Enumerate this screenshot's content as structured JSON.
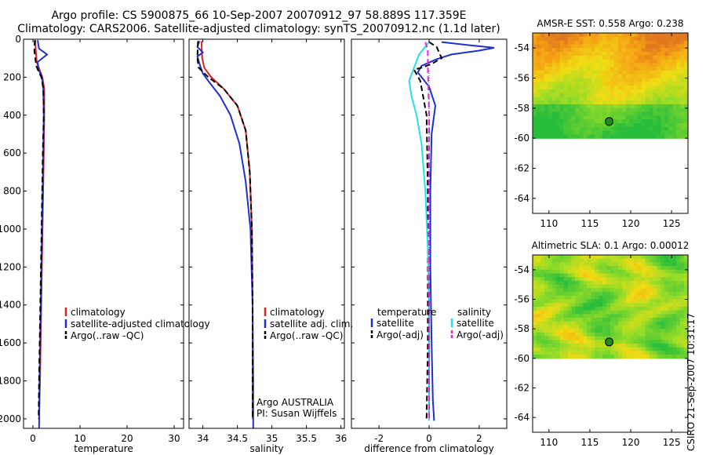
{
  "title_line1": "Argo profile: CS 5900875_66 10-Sep-2007 20070912_97 58.889S 117.359E",
  "title_line2": "Climatology: CARS2006. Satellite-adjusted climatology: synTS_20070912.nc (1.1d later)",
  "stamp": "CSIRO 21-Sep-2007 10:31:17",
  "colors": {
    "red": "#dd2222",
    "blue": "#1f2fd8",
    "black": "#000000",
    "cyan": "#22e0ee",
    "magenta": "#ee22dd",
    "marker": "#228822"
  },
  "chart_data": [
    {
      "type": "line",
      "title": "",
      "xlabel": "temperature",
      "ylabel": "",
      "xlim": [
        -2,
        32
      ],
      "ylim": [
        2050,
        0
      ],
      "xticks": [
        0,
        10,
        20,
        30
      ],
      "yticks": [
        0,
        200,
        400,
        600,
        800,
        1000,
        1200,
        1400,
        1600,
        1800,
        2000
      ],
      "legend": [
        "climatology",
        "satellite-adjusted climatology",
        "Argo(..raw -QC)"
      ],
      "series": [
        {
          "name": "climatology",
          "color": "red",
          "dash": "solid",
          "x": [
            0.5,
            0.6,
            0.8,
            1.4,
            2.0,
            2.4,
            2.4,
            2.3,
            2.1,
            1.9,
            1.7,
            1.5,
            1.3
          ],
          "y": [
            5,
            60,
            120,
            160,
            200,
            260,
            400,
            600,
            900,
            1200,
            1500,
            1800,
            2000
          ]
        },
        {
          "name": "satellite-adjusted climatology",
          "color": "blue",
          "dash": "solid",
          "x": [
            1.0,
            1.3,
            3.0,
            1.0,
            1.2,
            1.9,
            2.2,
            2.3,
            2.2,
            2.0,
            1.8,
            1.6,
            1.4,
            1.3
          ],
          "y": [
            5,
            50,
            80,
            120,
            160,
            200,
            260,
            400,
            600,
            900,
            1200,
            1500,
            1800,
            2050
          ]
        },
        {
          "name": "Argo(..raw -QC)",
          "color": "black",
          "dash": "dash",
          "x": [
            0.4,
            0.3,
            0.5,
            0.7,
            1.2,
            1.8,
            2.2,
            2.3,
            2.1,
            1.9,
            1.7,
            1.5,
            1.3,
            1.2
          ],
          "y": [
            5,
            60,
            100,
            140,
            170,
            200,
            260,
            400,
            600,
            900,
            1200,
            1500,
            1800,
            2000
          ]
        }
      ]
    },
    {
      "type": "line",
      "xlabel": "salinity",
      "ylabel": "",
      "xlim": [
        33.8,
        36.05
      ],
      "ylim": [
        2050,
        0
      ],
      "xticks": [
        34,
        34.5,
        35,
        35.5,
        36
      ],
      "xticklabels": [
        "34",
        "34.5",
        "35",
        "35.5",
        "36"
      ],
      "legend": [
        "climatology",
        "satellite adj. clim.",
        "Argo(..raw -QC)"
      ],
      "annotation": [
        "Argo AUSTRALIA",
        "PI: Susan Wijffels"
      ],
      "series": [
        {
          "name": "climatology",
          "color": "red",
          "dash": "solid",
          "x": [
            33.98,
            33.99,
            34.02,
            34.12,
            34.3,
            34.5,
            34.62,
            34.68,
            34.71,
            34.72,
            34.72,
            34.72
          ],
          "y": [
            10,
            100,
            150,
            200,
            260,
            350,
            480,
            700,
            1000,
            1400,
            1800,
            2000
          ]
        },
        {
          "name": "satellite adj. clim.",
          "color": "blue",
          "dash": "solid",
          "x": [
            33.95,
            33.92,
            34.0,
            33.92,
            33.96,
            34.0,
            34.1,
            34.25,
            34.4,
            34.53,
            34.62,
            34.69,
            34.72,
            34.73,
            34.73
          ],
          "y": [
            10,
            40,
            70,
            90,
            140,
            180,
            230,
            300,
            400,
            550,
            750,
            1000,
            1400,
            1800,
            2050
          ]
        },
        {
          "name": "Argo(..raw -QC)",
          "color": "black",
          "dash": "dash",
          "x": [
            33.93,
            33.92,
            33.94,
            34.08,
            34.3,
            34.5,
            34.62,
            34.68,
            34.71,
            34.72,
            34.72,
            34.72
          ],
          "y": [
            10,
            100,
            150,
            200,
            260,
            350,
            480,
            700,
            1000,
            1400,
            1800,
            2000
          ]
        }
      ]
    },
    {
      "type": "line",
      "xlabel": "difference from climatology",
      "ylabel": "",
      "xlim": [
        -3.1,
        3.1
      ],
      "ylim": [
        2050,
        0
      ],
      "xticks": [
        -2,
        0,
        2
      ],
      "legend_left_title": "temperature",
      "legend_right_title": "salinity",
      "legend": [
        "satellite",
        "Argo(-adj)",
        "satellite",
        "Argo(-adj)"
      ],
      "series": [
        {
          "name": "temperature satellite",
          "color": "blue",
          "dash": "solid",
          "x": [
            0.5,
            1.5,
            2.6,
            2.0,
            0.9,
            0.3,
            -0.3,
            -0.45,
            0.0,
            0.25,
            0.1,
            0.05,
            0.05,
            0.1,
            0.15,
            0.2
          ],
          "y": [
            15,
            30,
            45,
            60,
            80,
            105,
            140,
            175,
            250,
            350,
            500,
            800,
            1200,
            1600,
            1900,
            2010
          ]
        },
        {
          "name": "temperature Argo(-adj)",
          "color": "black",
          "dash": "dash",
          "x": [
            0.0,
            0.3,
            0.5,
            0.1,
            -0.3,
            -0.6,
            -0.35,
            -0.1,
            -0.05,
            -0.05,
            -0.05,
            -0.1
          ],
          "y": [
            15,
            40,
            100,
            130,
            150,
            160,
            220,
            400,
            800,
            1200,
            1600,
            2000
          ]
        },
        {
          "name": "salinity satellite",
          "color": "cyan",
          "dash": "solid",
          "x": [
            0.0,
            -0.4,
            -0.6,
            -0.8,
            -0.7,
            -0.5,
            -0.3,
            -0.15,
            -0.05,
            0.0,
            0.0,
            0.0,
            0.0
          ],
          "y": [
            15,
            80,
            150,
            220,
            300,
            400,
            550,
            800,
            1100,
            1400,
            1700,
            1900,
            2010
          ]
        },
        {
          "name": "salinity Argo(-adj)",
          "color": "magenta",
          "dash": "dash",
          "x": [
            -0.15,
            -0.05,
            -0.05,
            0.0,
            0.0,
            0.0,
            0.0
          ],
          "y": [
            15,
            60,
            150,
            400,
            1000,
            1600,
            2000
          ]
        }
      ]
    },
    {
      "type": "heatmap",
      "title": "AMSR-E SST: 0.558 Argo: 0.238",
      "xlim": [
        108,
        127
      ],
      "ylim": [
        -65,
        -53
      ],
      "xticks": [
        110,
        115,
        120,
        125
      ],
      "yticks": [
        -54,
        -56,
        -58,
        -60,
        -62,
        -64
      ],
      "data_ylim": [
        -60,
        -53
      ],
      "marker": [
        117.36,
        -58.89
      ]
    },
    {
      "type": "heatmap",
      "title": "Altimetric SLA: 0.1 Argo: 0.00012",
      "xlim": [
        108,
        127
      ],
      "ylim": [
        -65,
        -53
      ],
      "xticks": [
        110,
        115,
        120,
        125
      ],
      "yticks": [
        -54,
        -56,
        -58,
        -60,
        -62,
        -64
      ],
      "data_ylim": [
        -60,
        -53
      ],
      "marker": [
        117.36,
        -58.89
      ]
    }
  ]
}
